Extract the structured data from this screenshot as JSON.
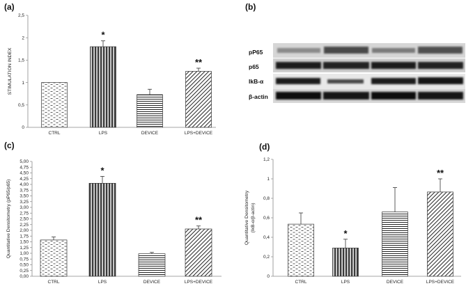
{
  "chart_data": [
    {
      "panel": "(a)",
      "type": "bar",
      "categories": [
        "CTRL",
        "LPS",
        "DEVICE",
        "LPS+DEVICE"
      ],
      "values": [
        1.0,
        1.8,
        0.73,
        1.25
      ],
      "errors": [
        0,
        0.13,
        0.12,
        0.07
      ],
      "significance": [
        "",
        "*",
        "",
        "**"
      ],
      "ylabel": "STIMULATION INDEX",
      "ylim": [
        0,
        2.5
      ],
      "yticks": [
        "0",
        "0,5",
        "1",
        "1,5",
        "2",
        "2,5"
      ],
      "grid": false,
      "patterns": [
        "dash",
        "vertical",
        "horizontal",
        "diagonal"
      ]
    },
    {
      "panel": "(c)",
      "type": "bar",
      "categories": [
        "CTRL",
        "LPS",
        "DEVICE",
        "LPS+DEVICE"
      ],
      "values": [
        1.58,
        4.05,
        0.98,
        2.06
      ],
      "errors": [
        0.13,
        0.3,
        0.06,
        0.13
      ],
      "significance": [
        "",
        "*",
        "",
        "**"
      ],
      "ylabel": "Quantitative Densitometry (pP65/p65)",
      "ylim": [
        0,
        5
      ],
      "yticks": [
        "0,00",
        "0,25",
        "0,50",
        "0,75",
        "1,00",
        "1,25",
        "1,50",
        "1,75",
        "2,00",
        "2,25",
        "2,50",
        "2,75",
        "3,00",
        "3,25",
        "3,50",
        "3,75",
        "4,00",
        "4,25",
        "4,50",
        "4,75",
        "5,00"
      ],
      "grid": false,
      "patterns": [
        "dash",
        "vertical",
        "horizontal",
        "diagonal"
      ]
    },
    {
      "panel": "(d)",
      "type": "bar",
      "categories": [
        "CTRL",
        "LPS",
        "DEVICE",
        "LPS+DEVICE"
      ],
      "values": [
        0.535,
        0.29,
        0.66,
        0.865
      ],
      "errors": [
        0.115,
        0.09,
        0.25,
        0.135
      ],
      "significance": [
        "",
        "*",
        "",
        "**"
      ],
      "ylabel_lines": [
        "Quantitative Densitometry",
        "(IkB-α/β-actin)"
      ],
      "ylim": [
        0,
        1.2
      ],
      "yticks": [
        "0",
        "0,2",
        "0,4",
        "0,6",
        "0,8",
        "1",
        "1,2"
      ],
      "grid": false,
      "patterns": [
        "dash",
        "vertical",
        "horizontal",
        "diagonal"
      ]
    }
  ],
  "blot": {
    "panel": "(b)",
    "labels": [
      "pP65",
      "p65",
      "IkB-α",
      "β-actin"
    ]
  },
  "colors": {
    "pattern_ink": "#222222",
    "lps_dark": "#3a3a3a",
    "axis": "#888888",
    "blot_bg": "#dcdcdc",
    "blot_band": "#1a1a1a"
  }
}
